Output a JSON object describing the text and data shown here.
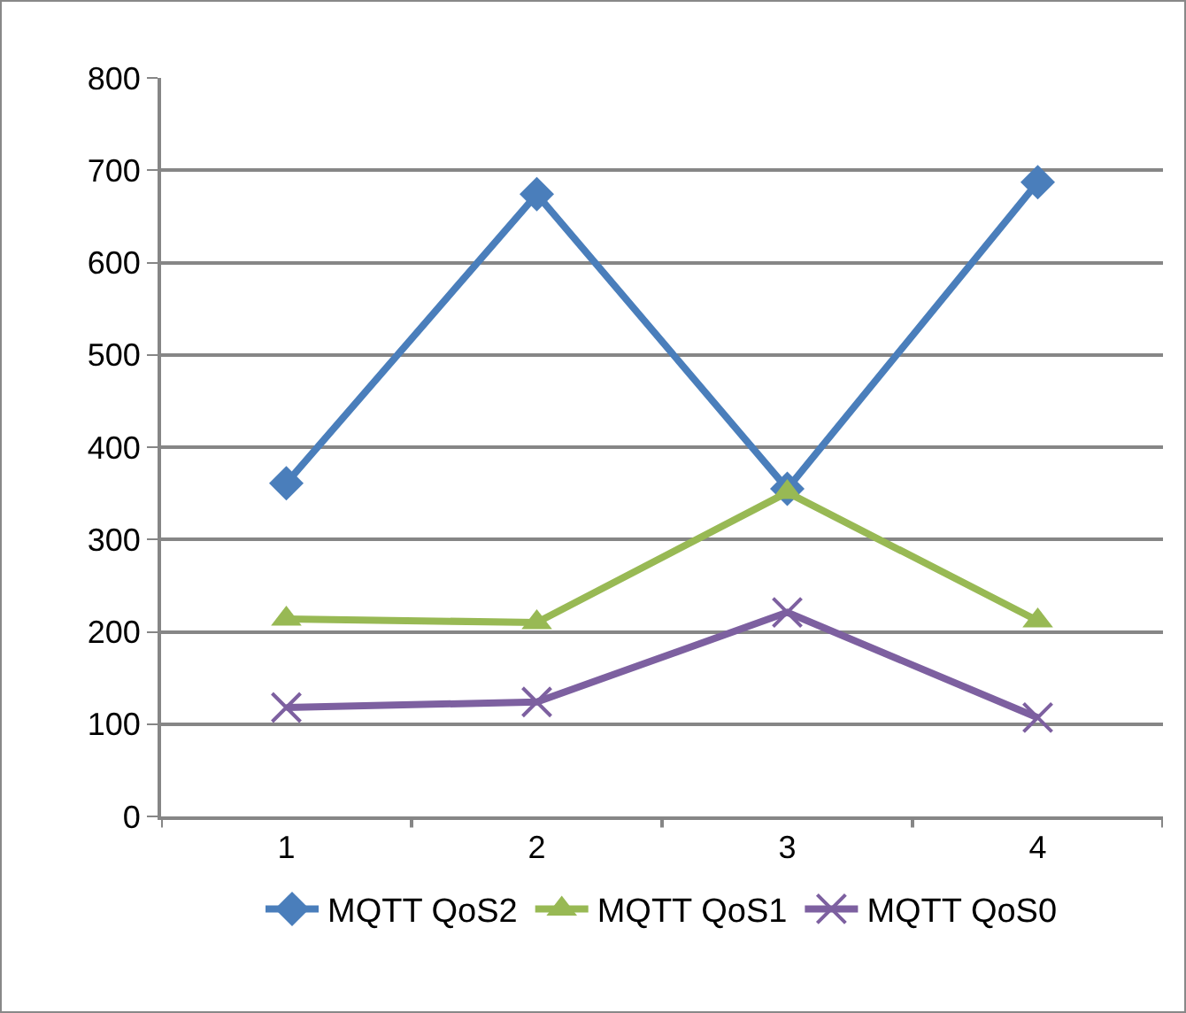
{
  "chart_data": {
    "type": "line",
    "categories": [
      "1",
      "2",
      "3",
      "4"
    ],
    "series": [
      {
        "name": "MQTT QoS2",
        "color": "#4a7ebb",
        "marker": "diamond",
        "values": [
          361,
          674,
          355,
          687
        ]
      },
      {
        "name": "MQTT QoS1",
        "color": "#98b954",
        "marker": "triangle",
        "values": [
          214,
          210,
          351,
          212
        ]
      },
      {
        "name": "MQTT QoS0",
        "color": "#7d60a0",
        "marker": "cross",
        "values": [
          118,
          124,
          221,
          107
        ]
      }
    ],
    "ylim": [
      0,
      800
    ],
    "yticks": [
      0,
      100,
      200,
      300,
      400,
      500,
      600,
      700,
      800
    ],
    "grid": "y",
    "legend": "bottom",
    "line_style": "solid"
  }
}
